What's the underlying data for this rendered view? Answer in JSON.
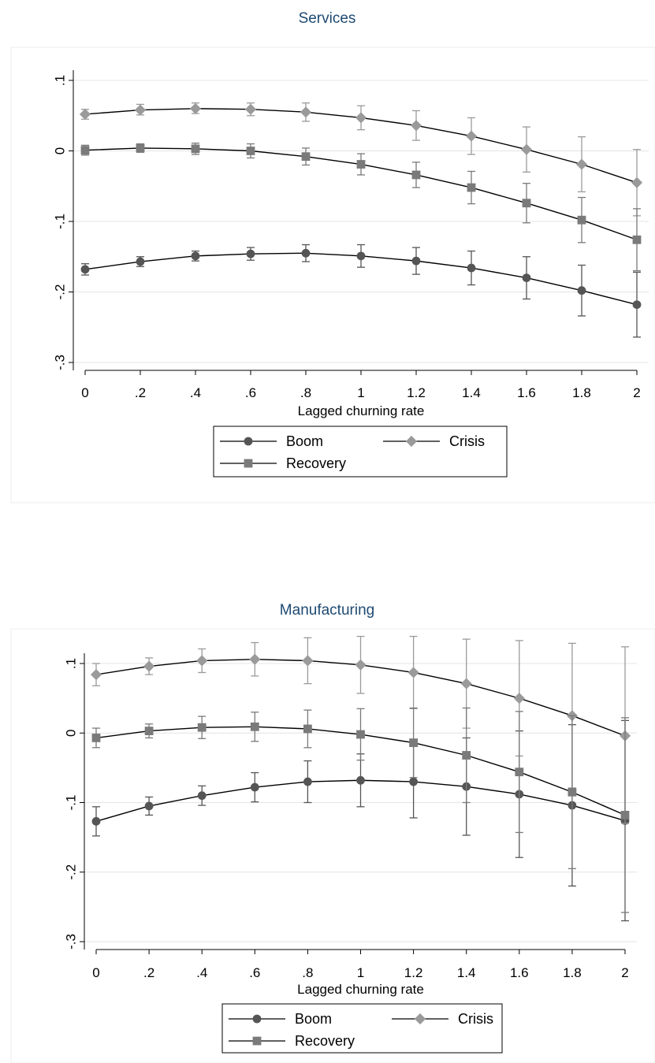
{
  "chart_data": [
    {
      "type": "line",
      "title": "Services",
      "xlabel": "Lagged churning rate",
      "ylabel": "",
      "x": [
        0,
        0.2,
        0.4,
        0.6,
        0.8,
        1.0,
        1.2,
        1.4,
        1.6,
        1.8,
        2.0
      ],
      "x_tick_labels": [
        "0",
        ".2",
        ".4",
        ".6",
        ".8",
        "1",
        "1.2",
        "1.4",
        "1.6",
        "1.8",
        "2"
      ],
      "y_ticks": [
        0.1,
        0,
        -0.1,
        -0.2,
        -0.3
      ],
      "y_tick_labels": [
        ".1",
        "0",
        "-.1",
        "-.2",
        "-.3"
      ],
      "xlim": [
        0,
        2
      ],
      "ylim": [
        -0.3,
        0.1
      ],
      "grid": true,
      "legend_position": "bottom",
      "series": [
        {
          "name": "Boom",
          "marker": "circle",
          "color": "#555555",
          "values": [
            -0.168,
            -0.157,
            -0.149,
            -0.146,
            -0.145,
            -0.149,
            -0.156,
            -0.166,
            -0.18,
            -0.198,
            -0.218
          ],
          "ci_low": [
            -0.176,
            -0.164,
            -0.156,
            -0.155,
            -0.157,
            -0.165,
            -0.175,
            -0.19,
            -0.21,
            -0.234,
            -0.264
          ],
          "ci_high": [
            -0.16,
            -0.15,
            -0.142,
            -0.137,
            -0.133,
            -0.133,
            -0.137,
            -0.142,
            -0.15,
            -0.162,
            -0.172
          ]
        },
        {
          "name": "Crisis",
          "marker": "diamond",
          "color": "#9a9a9a",
          "values": [
            0.052,
            0.058,
            0.06,
            0.059,
            0.055,
            0.047,
            0.036,
            0.021,
            0.002,
            -0.019,
            -0.045
          ],
          "ci_low": [
            0.045,
            0.051,
            0.053,
            0.05,
            0.042,
            0.03,
            0.015,
            -0.005,
            -0.03,
            -0.058,
            -0.092
          ],
          "ci_high": [
            0.059,
            0.066,
            0.068,
            0.068,
            0.068,
            0.064,
            0.057,
            0.047,
            0.034,
            0.02,
            0.002
          ]
        },
        {
          "name": "Recovery",
          "marker": "square",
          "color": "#7a7a7a",
          "values": [
            0.001,
            0.004,
            0.003,
            0.0,
            -0.008,
            -0.019,
            -0.034,
            -0.052,
            -0.074,
            -0.098,
            -0.126
          ],
          "ci_low": [
            -0.006,
            -0.002,
            -0.005,
            -0.01,
            -0.02,
            -0.034,
            -0.052,
            -0.075,
            -0.102,
            -0.13,
            -0.17
          ],
          "ci_high": [
            0.008,
            0.01,
            0.011,
            0.01,
            0.004,
            -0.004,
            -0.016,
            -0.029,
            -0.046,
            -0.066,
            -0.082
          ]
        }
      ]
    },
    {
      "type": "line",
      "title": "Manufacturing",
      "xlabel": "Lagged churning rate",
      "ylabel": "",
      "x": [
        0,
        0.2,
        0.4,
        0.6,
        0.8,
        1.0,
        1.2,
        1.4,
        1.6,
        1.8,
        2.0
      ],
      "x_tick_labels": [
        "0",
        ".2",
        ".4",
        ".6",
        ".8",
        "1",
        "1.2",
        "1.4",
        "1.6",
        "1.8",
        "2"
      ],
      "y_ticks": [
        0.1,
        0,
        -0.1,
        -0.2,
        -0.3
      ],
      "y_tick_labels": [
        ".1",
        "0",
        "-.1",
        "-.2",
        "-.3"
      ],
      "xlim": [
        0,
        2
      ],
      "ylim": [
        -0.3,
        0.1
      ],
      "grid": true,
      "legend_position": "bottom",
      "series": [
        {
          "name": "Boom",
          "marker": "circle",
          "color": "#555555",
          "values": [
            -0.127,
            -0.105,
            -0.09,
            -0.078,
            -0.07,
            -0.068,
            -0.07,
            -0.077,
            -0.088,
            -0.104,
            -0.126
          ],
          "ci_low": [
            -0.148,
            -0.118,
            -0.104,
            -0.099,
            -0.1,
            -0.106,
            -0.122,
            -0.147,
            -0.179,
            -0.22,
            -0.27
          ],
          "ci_high": [
            -0.106,
            -0.092,
            -0.076,
            -0.057,
            -0.04,
            -0.03,
            -0.018,
            -0.007,
            0.003,
            0.012,
            0.018
          ]
        },
        {
          "name": "Crisis",
          "marker": "diamond",
          "color": "#9a9a9a",
          "values": [
            0.084,
            0.096,
            0.104,
            0.106,
            0.104,
            0.098,
            0.087,
            0.071,
            0.05,
            0.025,
            -0.004
          ],
          "ci_low": [
            0.068,
            0.084,
            0.087,
            0.082,
            0.071,
            0.057,
            0.035,
            0.007,
            -0.033,
            -0.079,
            -0.13
          ],
          "ci_high": [
            0.1,
            0.108,
            0.121,
            0.13,
            0.137,
            0.139,
            0.139,
            0.135,
            0.133,
            0.129,
            0.124
          ]
        },
        {
          "name": "Recovery",
          "marker": "square",
          "color": "#7a7a7a",
          "values": [
            -0.007,
            0.003,
            0.008,
            0.009,
            0.006,
            -0.002,
            -0.014,
            -0.032,
            -0.056,
            -0.085,
            -0.118
          ],
          "ci_low": [
            -0.021,
            -0.007,
            -0.008,
            -0.012,
            -0.021,
            -0.039,
            -0.064,
            -0.1,
            -0.143,
            -0.195,
            -0.258
          ],
          "ci_high": [
            0.007,
            0.013,
            0.024,
            0.03,
            0.033,
            0.035,
            0.036,
            0.036,
            0.031,
            0.025,
            0.022
          ]
        }
      ]
    }
  ]
}
